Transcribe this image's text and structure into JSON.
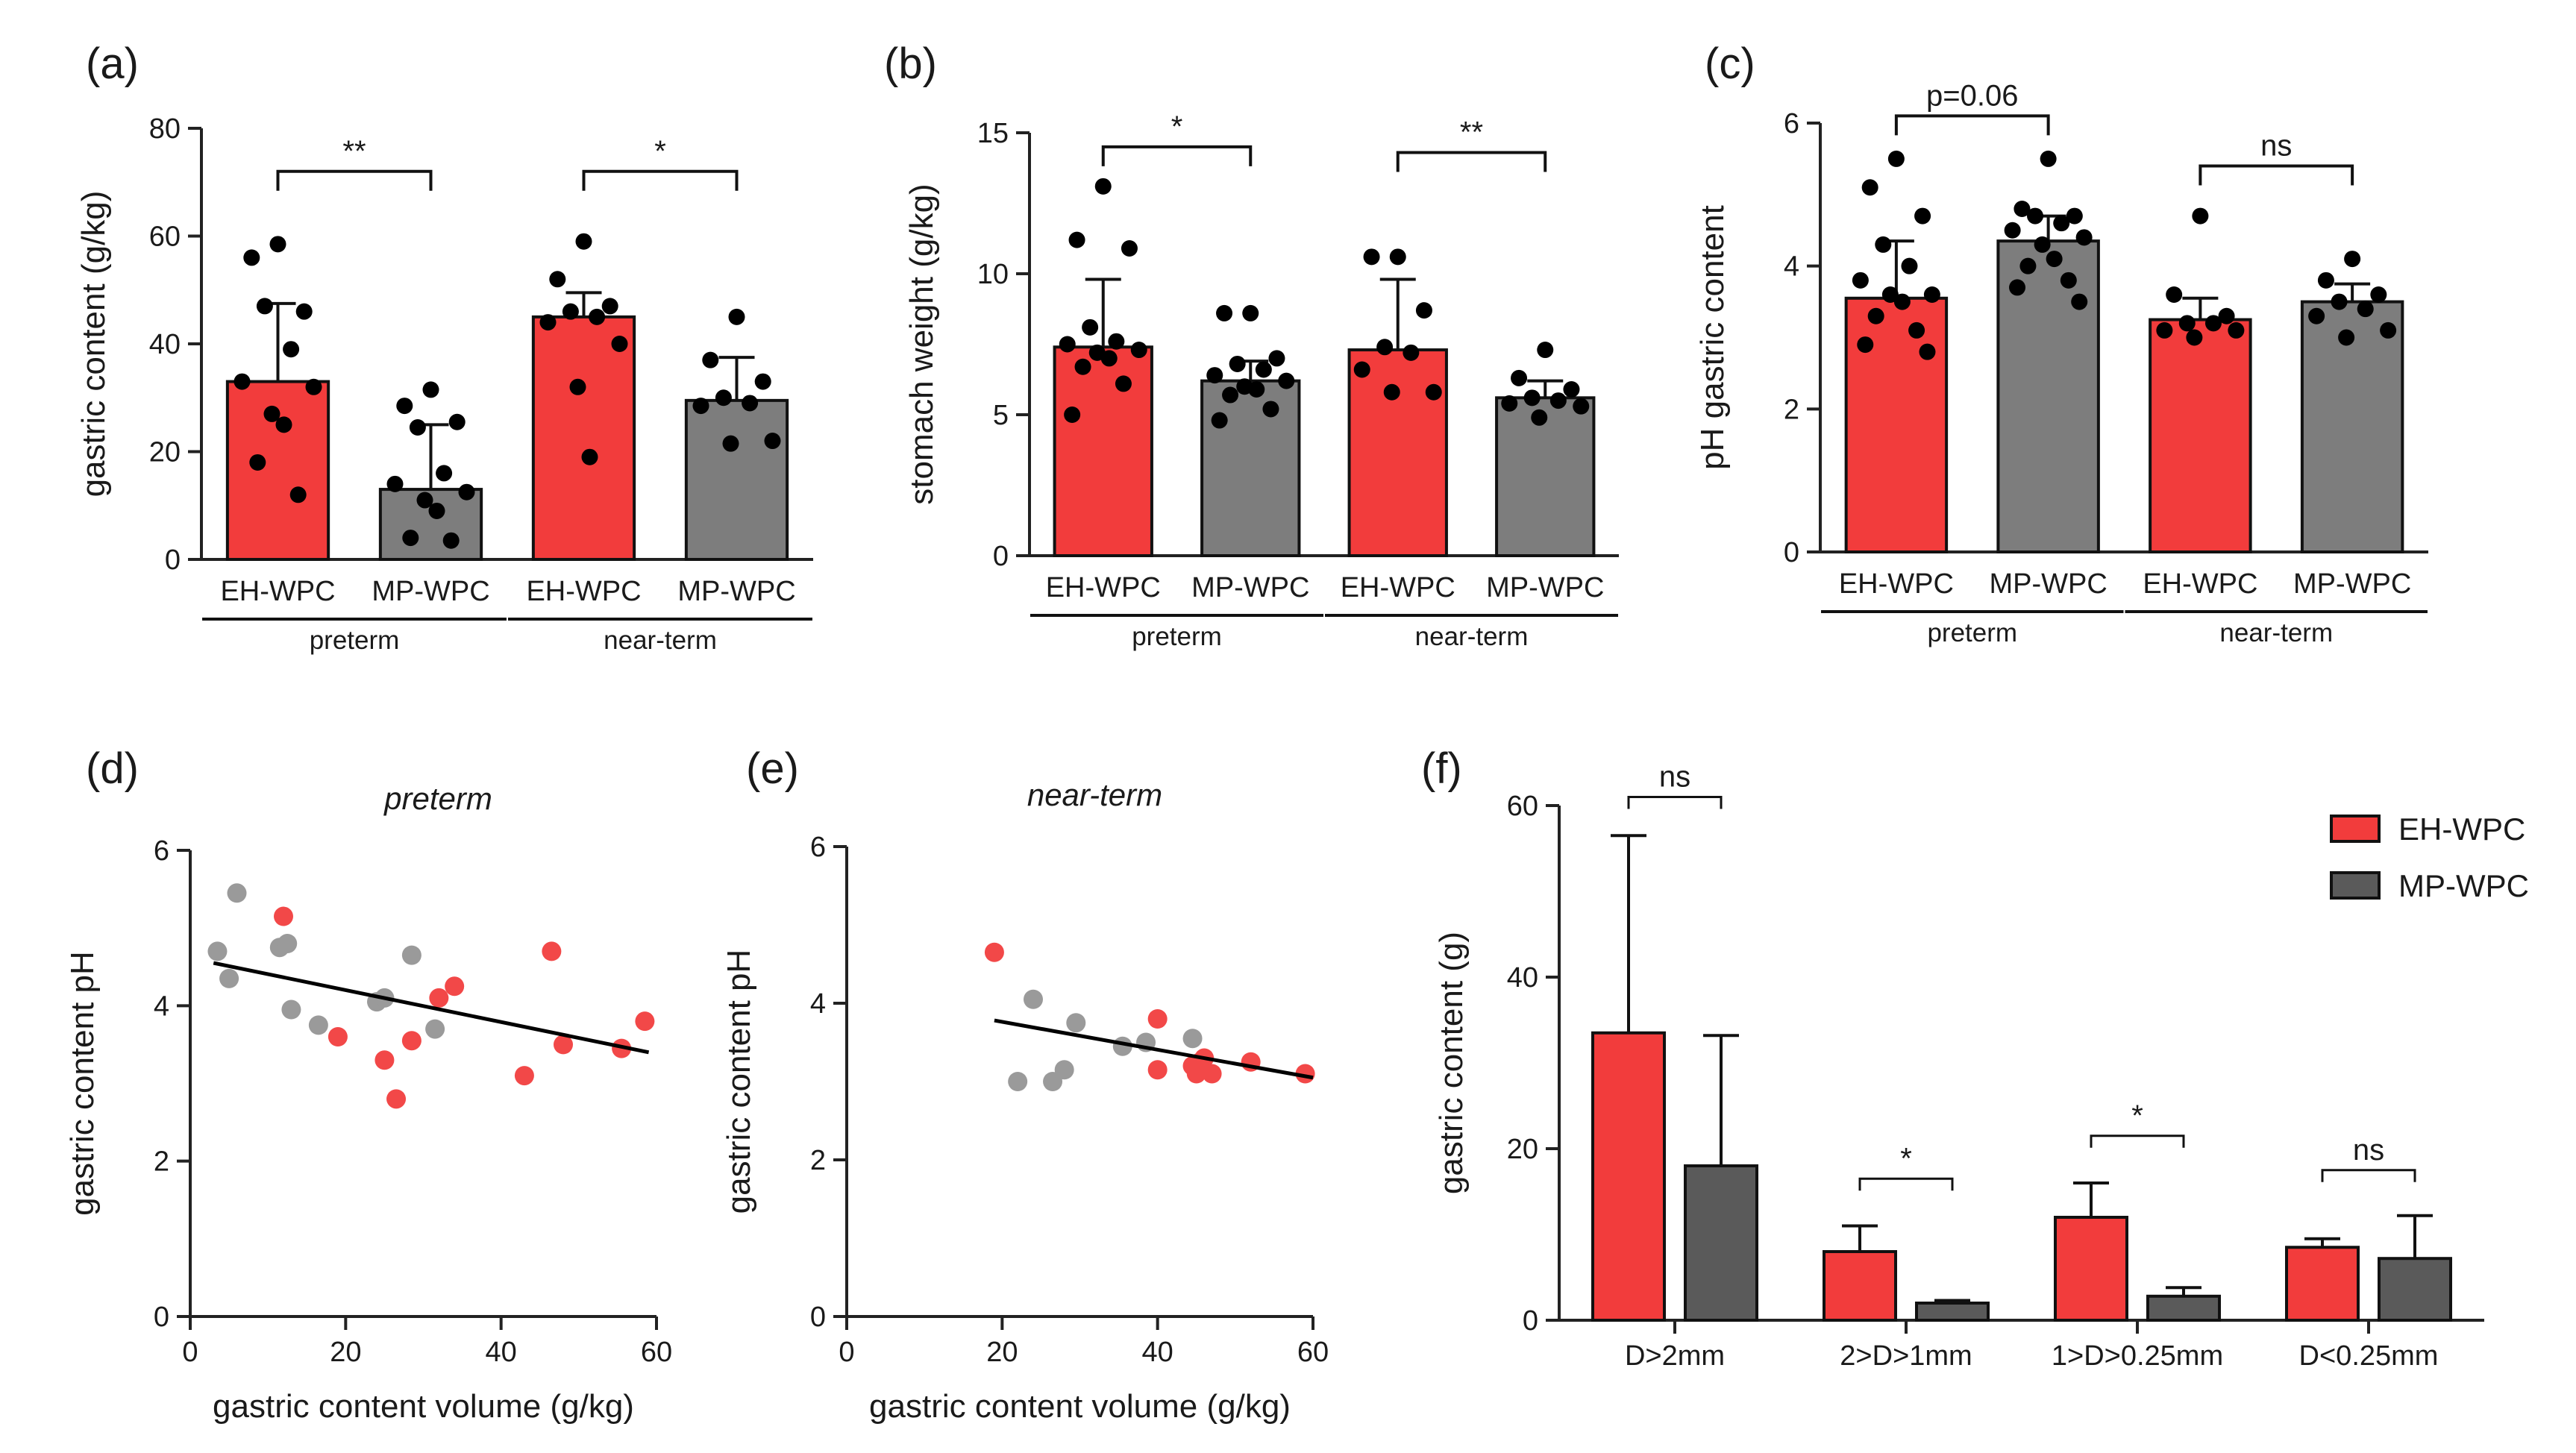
{
  "colors": {
    "eh": "#f23c3c",
    "mp": "#7d7d7d",
    "mp_dark": "#5a5a5a",
    "scatter_eh": "#f24848",
    "scatter_mp": "#9a9a9a"
  },
  "chart_data": [
    {
      "id": "a",
      "type": "bar",
      "letter": "(a)",
      "ylabel": "gastric content (g/kg)",
      "ylim": [
        0,
        80
      ],
      "yticks": [
        0,
        20,
        40,
        60,
        80
      ],
      "categories": [
        "EH-WPC",
        "MP-WPC",
        "EH-WPC",
        "MP-WPC"
      ],
      "groups": [
        {
          "label": "preterm",
          "from": 0,
          "to": 1
        },
        {
          "label": "near-term",
          "from": 2,
          "to": 3
        }
      ],
      "bars": [
        {
          "series": "EH-WPC",
          "value": 33,
          "err": 14.5,
          "points": [
            58.5,
            56,
            46,
            47,
            39,
            33,
            32,
            27,
            25,
            18,
            12
          ]
        },
        {
          "series": "MP-WPC",
          "value": 13,
          "err": 12,
          "points": [
            31.5,
            28.5,
            25.5,
            24.5,
            16,
            14,
            12.5,
            11,
            9,
            4,
            3.5
          ]
        },
        {
          "series": "EH-WPC",
          "value": 45,
          "err": 4.5,
          "points": [
            59,
            52,
            47,
            46,
            45,
            44,
            40,
            32,
            19
          ]
        },
        {
          "series": "MP-WPC",
          "value": 29.5,
          "err": 8,
          "points": [
            45,
            37,
            33,
            30,
            29,
            28.5,
            22,
            21.5
          ]
        }
      ],
      "sig": [
        {
          "from": 0,
          "to": 1,
          "label": "**",
          "y": 72
        },
        {
          "from": 2,
          "to": 3,
          "label": "*",
          "y": 72
        }
      ]
    },
    {
      "id": "b",
      "type": "bar",
      "letter": "(b)",
      "ylabel": "stomach weight (g/kg)",
      "ylim": [
        0,
        15
      ],
      "yticks": [
        0,
        5,
        10,
        15
      ],
      "categories": [
        "EH-WPC",
        "MP-WPC",
        "EH-WPC",
        "MP-WPC"
      ],
      "groups": [
        {
          "label": "preterm",
          "from": 0,
          "to": 1
        },
        {
          "label": "near-term",
          "from": 2,
          "to": 3
        }
      ],
      "bars": [
        {
          "series": "EH-WPC",
          "value": 7.4,
          "err": 2.4,
          "points": [
            13.1,
            11.2,
            10.9,
            8.1,
            7.6,
            7.5,
            7.3,
            7.2,
            7.0,
            6.7,
            6.1,
            5.0
          ]
        },
        {
          "series": "MP-WPC",
          "value": 6.2,
          "err": 0.7,
          "points": [
            8.6,
            8.6,
            7.0,
            6.8,
            6.6,
            6.4,
            6.2,
            6.0,
            5.9,
            5.7,
            5.2,
            4.8
          ]
        },
        {
          "series": "EH-WPC",
          "value": 7.3,
          "err": 2.5,
          "points": [
            10.6,
            10.6,
            8.7,
            7.4,
            7.2,
            6.6,
            5.8,
            5.8
          ]
        },
        {
          "series": "MP-WPC",
          "value": 5.6,
          "err": 0.6,
          "points": [
            7.3,
            6.3,
            5.9,
            5.6,
            5.5,
            5.4,
            5.3,
            4.9
          ]
        }
      ],
      "sig": [
        {
          "from": 0,
          "to": 1,
          "label": "*",
          "y": 14.5
        },
        {
          "from": 2,
          "to": 3,
          "label": "**",
          "y": 14.3
        }
      ]
    },
    {
      "id": "c",
      "type": "bar",
      "letter": "(c)",
      "ylabel": "pH gastric content",
      "ylim": [
        0,
        6
      ],
      "yticks": [
        0,
        2,
        4,
        6
      ],
      "categories": [
        "EH-WPC",
        "MP-WPC",
        "EH-WPC",
        "MP-WPC"
      ],
      "groups": [
        {
          "label": "preterm",
          "from": 0,
          "to": 1
        },
        {
          "label": "near-term",
          "from": 2,
          "to": 3
        }
      ],
      "bars": [
        {
          "series": "EH-WPC",
          "value": 3.55,
          "err": 0.8,
          "points": [
            5.5,
            5.1,
            4.7,
            4.3,
            4.0,
            3.8,
            3.6,
            3.6,
            3.5,
            3.3,
            3.1,
            2.9,
            2.8
          ]
        },
        {
          "series": "MP-WPC",
          "value": 4.35,
          "err": 0.35,
          "points": [
            5.5,
            4.8,
            4.7,
            4.7,
            4.6,
            4.5,
            4.4,
            4.3,
            4.1,
            4.0,
            3.8,
            3.7,
            3.5
          ]
        },
        {
          "series": "EH-WPC",
          "value": 3.25,
          "err": 0.3,
          "points": [
            4.7,
            3.6,
            3.3,
            3.2,
            3.2,
            3.1,
            3.1,
            3.0
          ]
        },
        {
          "series": "MP-WPC",
          "value": 3.5,
          "err": 0.25,
          "points": [
            4.1,
            3.8,
            3.6,
            3.5,
            3.4,
            3.3,
            3.1,
            3.0
          ]
        }
      ],
      "sig": [
        {
          "from": 0,
          "to": 1,
          "label": "p=0.06",
          "y": 6.1
        },
        {
          "from": 2,
          "to": 3,
          "label": "ns",
          "y": 5.4
        }
      ]
    },
    {
      "id": "d",
      "type": "scatter",
      "letter": "(d)",
      "subtitle": "preterm",
      "xlabel": "gastric content volume (g/kg)",
      "ylabel": "gastric content pH",
      "xlim": [
        0,
        60
      ],
      "ylim": [
        0,
        6
      ],
      "xticks": [
        0,
        20,
        40,
        60
      ],
      "yticks": [
        0,
        2,
        4,
        6
      ],
      "series": [
        {
          "name": "EH-WPC",
          "points": [
            [
              12,
              5.15
            ],
            [
              19,
              3.6
            ],
            [
              25,
              3.3
            ],
            [
              26.5,
              2.8
            ],
            [
              28.5,
              3.55
            ],
            [
              32,
              4.1
            ],
            [
              34,
              4.25
            ],
            [
              43,
              3.1
            ],
            [
              46.5,
              4.7
            ],
            [
              48,
              3.5
            ],
            [
              55.5,
              3.45
            ],
            [
              58.5,
              3.8
            ]
          ]
        },
        {
          "name": "MP-WPC",
          "points": [
            [
              3.5,
              4.7
            ],
            [
              5,
              4.35
            ],
            [
              6,
              5.45
            ],
            [
              11.5,
              4.75
            ],
            [
              12.5,
              4.8
            ],
            [
              13,
              3.95
            ],
            [
              16.5,
              3.75
            ],
            [
              24,
              4.05
            ],
            [
              25,
              4.1
            ],
            [
              28.5,
              4.65
            ],
            [
              31.5,
              3.7
            ]
          ]
        }
      ],
      "fit": {
        "x": [
          3,
          59
        ],
        "y": [
          4.55,
          3.4
        ]
      }
    },
    {
      "id": "e",
      "type": "scatter",
      "letter": "(e)",
      "subtitle": "near-term",
      "xlabel": "gastric content volume (g/kg)",
      "ylabel": "gastric content pH",
      "xlim": [
        0,
        60
      ],
      "ylim": [
        0,
        6
      ],
      "xticks": [
        0,
        20,
        40,
        60
      ],
      "yticks": [
        0,
        2,
        4,
        6
      ],
      "series": [
        {
          "name": "EH-WPC",
          "points": [
            [
              19,
              4.65
            ],
            [
              40,
              3.8
            ],
            [
              40,
              3.15
            ],
            [
              44.5,
              3.2
            ],
            [
              45,
              3.1
            ],
            [
              45.5,
              3.25
            ],
            [
              46,
              3.3
            ],
            [
              47,
              3.1
            ],
            [
              52,
              3.25
            ],
            [
              59,
              3.1
            ]
          ]
        },
        {
          "name": "MP-WPC",
          "points": [
            [
              22,
              3.0
            ],
            [
              24,
              4.05
            ],
            [
              26.5,
              3.0
            ],
            [
              28,
              3.15
            ],
            [
              29.5,
              3.75
            ],
            [
              35.5,
              3.45
            ],
            [
              38.5,
              3.5
            ],
            [
              44.5,
              3.55
            ]
          ]
        }
      ],
      "fit": {
        "x": [
          19,
          60
        ],
        "y": [
          3.78,
          3.05
        ]
      }
    },
    {
      "id": "f",
      "type": "bar",
      "letter": "(f)",
      "ylabel": "gastric content (g)",
      "ylim": [
        0,
        60
      ],
      "yticks": [
        0,
        20,
        40,
        60
      ],
      "categories": [
        "D>2mm",
        "2>D>1mm",
        "1>D>0.25mm",
        "D<0.25mm"
      ],
      "series": [
        {
          "name": "EH-WPC",
          "values": [
            33.5,
            8,
            12,
            8.5
          ],
          "err": [
            23,
            3,
            4,
            1
          ]
        },
        {
          "name": "MP-WPC",
          "values": [
            18,
            2,
            2.8,
            7.2
          ],
          "err": [
            15.2,
            0.3,
            1,
            5
          ]
        }
      ],
      "sig": [
        {
          "category": 0,
          "label": "ns",
          "y": 61
        },
        {
          "category": 1,
          "label": "*",
          "y": 16.5
        },
        {
          "category": 2,
          "label": "*",
          "y": 21.5
        },
        {
          "category": 3,
          "label": "ns",
          "y": 17.5
        }
      ],
      "legend": [
        "EH-WPC",
        "MP-WPC"
      ]
    }
  ]
}
